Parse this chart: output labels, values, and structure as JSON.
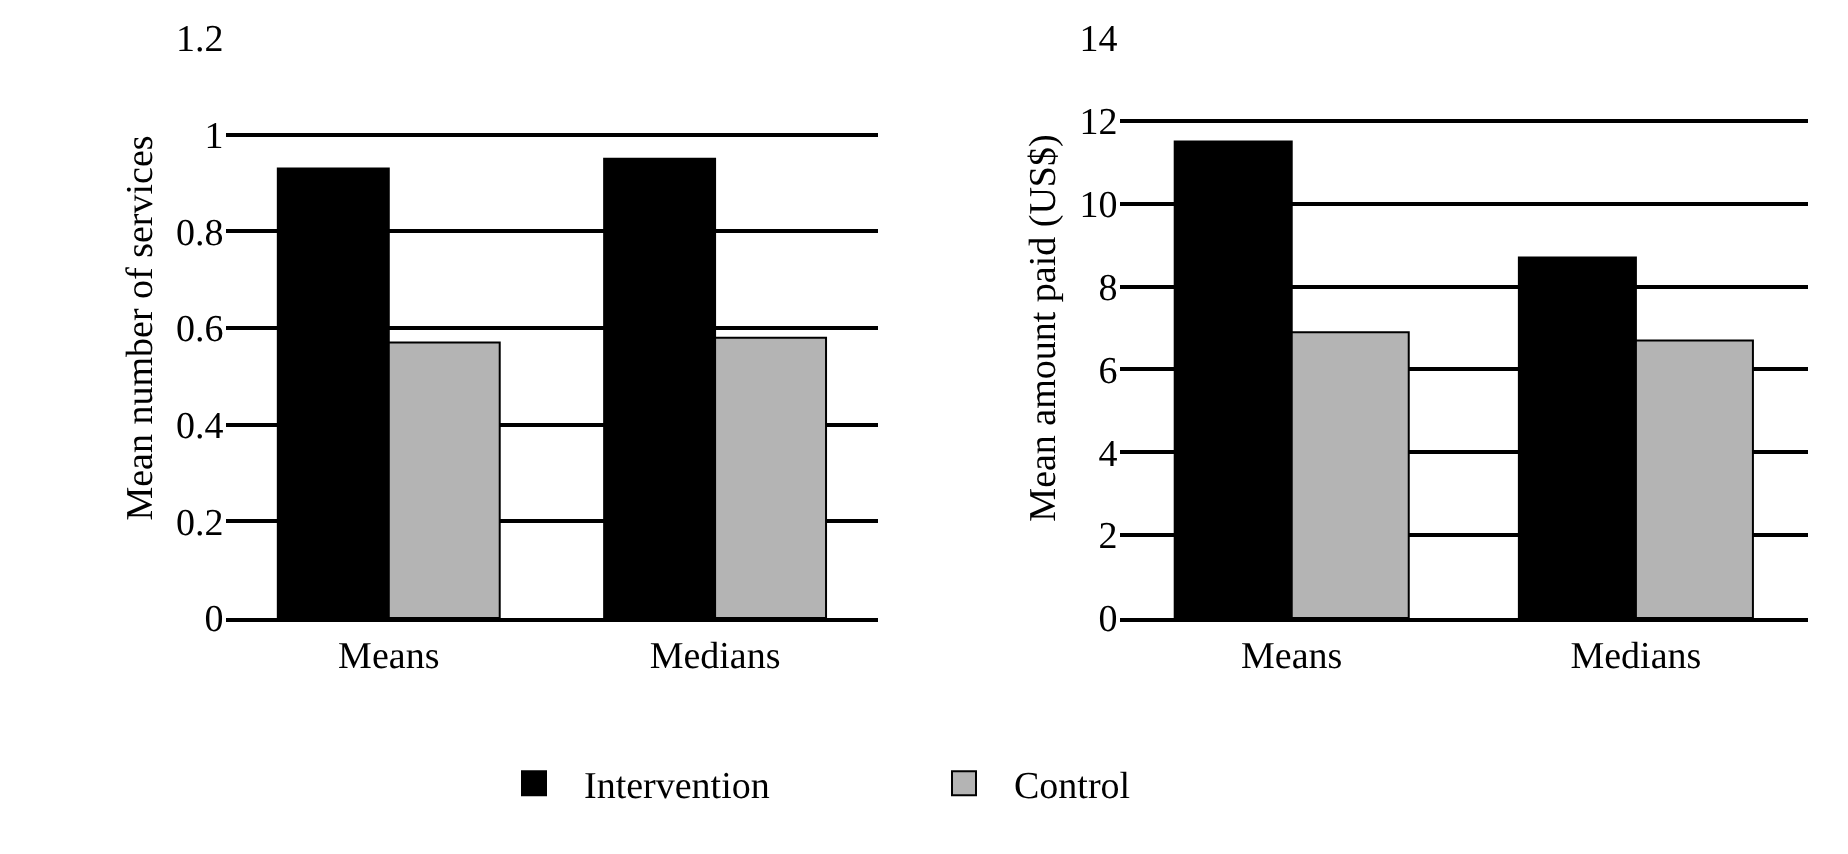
{
  "chart_data": [
    {
      "type": "bar",
      "ylabel": "Mean number of services",
      "categories": [
        "Means",
        "Medians"
      ],
      "series": [
        {
          "name": "Intervention",
          "color": "#000000",
          "values": [
            0.93,
            0.95
          ]
        },
        {
          "name": "Control",
          "color": "#b4b4b4",
          "values": [
            0.57,
            0.58
          ]
        }
      ],
      "ylim": [
        0,
        1.2
      ],
      "yticks": [
        0,
        {
          "value": 0.2,
          "label": "0.2"
        },
        {
          "value": 0.4,
          "label": "0.4"
        },
        {
          "value": 0.6,
          "label": "0.6"
        },
        {
          "value": 0.8,
          "label": "0.8"
        },
        1,
        1.2
      ],
      "grid": "y",
      "legend": "bottom"
    },
    {
      "type": "bar",
      "ylabel": "Mean amount paid (US$)",
      "categories": [
        "Means",
        "Medians"
      ],
      "series": [
        {
          "name": "Intervention",
          "color": "#000000",
          "values": [
            11.5,
            8.7
          ]
        },
        {
          "name": "Control",
          "color": "#b4b4b4",
          "values": [
            6.9,
            6.7
          ]
        }
      ],
      "ylim": [
        0,
        14
      ],
      "yticks": [
        0,
        2,
        4,
        6,
        8,
        10,
        12,
        14
      ],
      "grid": "y",
      "legend": "bottom"
    }
  ]
}
